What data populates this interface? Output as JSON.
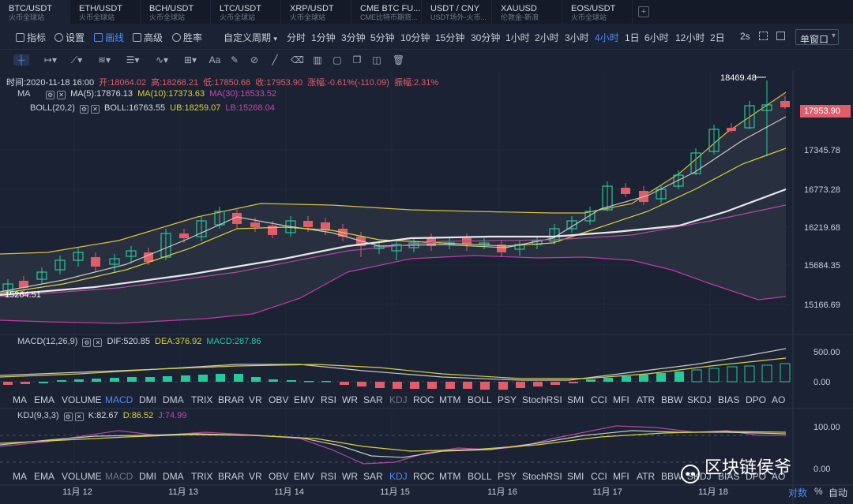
{
  "tabs": [
    {
      "name": "BTC/USDT",
      "sub": "火币全球站",
      "active": true
    },
    {
      "name": "ETH/USDT",
      "sub": "火币全球站"
    },
    {
      "name": "BCH/USDT",
      "sub": "火币全球站"
    },
    {
      "name": "LTC/USDT",
      "sub": "火币全球站"
    },
    {
      "name": "XRP/USDT",
      "sub": "火币全球站"
    },
    {
      "name": "CME BTC FU...",
      "sub": "CME比特币期货..."
    },
    {
      "name": "USDT / CNY",
      "sub": "USDT场外-火币..."
    },
    {
      "name": "XAUUSD",
      "sub": "伦敦金-新浪"
    },
    {
      "name": "EOS/USDT",
      "sub": "火币全球站"
    }
  ],
  "toolbar": {
    "indicator": "指标",
    "settings": "设置",
    "draw": "画线",
    "advanced": "高级",
    "win_rate": "胜率",
    "custom_period": "自定义周期",
    "periods": [
      "分时",
      "1分钟",
      "3分钟",
      "5分钟",
      "10分钟",
      "15分钟",
      "30分钟",
      "1小时",
      "2小时",
      "3小时",
      "4小时",
      "1日",
      "6小时",
      "12小时",
      "2日"
    ],
    "active_period": "4小时",
    "refresh": "2s",
    "window": "单窗口"
  },
  "ohlc": {
    "time": "时间:2020-11-18 16:00",
    "open": "开:18064.02",
    "high": "高:18268.21",
    "low": "低:17850.66",
    "close": "收:17953.90",
    "change": "涨幅:-0.61%(-110.09)",
    "amplitude": "振幅:2.31%"
  },
  "ma_legend": {
    "name": "MA",
    "ma5": "MA(5):17876.13",
    "ma10": "MA(10):17373.63",
    "ma30": "MA(30):16533.52"
  },
  "boll_legend": {
    "name": "BOLL(20,2)",
    "mid": "BOLL:16763.55",
    "ub": "UB:18259.07",
    "lb": "LB:15268.04"
  },
  "macd_legend": {
    "name": "MACD(12,26,9)",
    "dif": "DIF:520.85",
    "dea": "DEA:376.92",
    "macd": "MACD:287.86"
  },
  "kdj_legend": {
    "name": "KDJ(9,3,3)",
    "k": "K:82.67",
    "d": "D:86.52",
    "j": "J:74.99"
  },
  "indicators": [
    "MA",
    "EMA",
    "VOLUME",
    "MACD",
    "DMI",
    "DMA",
    "TRIX",
    "BRAR",
    "VR",
    "OBV",
    "EMV",
    "RSI",
    "WR",
    "SAR",
    "KDJ",
    "ROC",
    "MTM",
    "BOLL",
    "PSY",
    "StochRSI",
    "SMI",
    "CCI",
    "MFI",
    "ATR",
    "BBW",
    "SKDJ",
    "BIAS",
    "DPO",
    "AO"
  ],
  "price_axis": [
    "15166.69",
    "15684.35",
    "16219.68",
    "16773.28",
    "17345.78"
  ],
  "macd_axis": [
    "500.00",
    "0.00"
  ],
  "kdj_axis": [
    "100.00",
    "0.00"
  ],
  "current_price": "17953.90",
  "high_label": "18469.48",
  "low_label": "15264.51",
  "dates": [
    "11月 12",
    "11月 13",
    "11月 14",
    "11月 15",
    "11月 16",
    "11月 17",
    "11月 18"
  ],
  "bottom_opts": {
    "log": "对数",
    "pct": "%",
    "auto": "自动"
  },
  "watermark": "区块链侯爷",
  "colors": {
    "up": "#26c99a",
    "down": "#e05d6a",
    "ma5": "#c8c8c8",
    "ma10": "#d8d23a",
    "ma30": "#b04aa0",
    "boll_mid": "#e8e8e8",
    "boll_band": "#d8c23a",
    "boll_lb": "#c03aa8",
    "accent": "#4a8cf5"
  }
}
